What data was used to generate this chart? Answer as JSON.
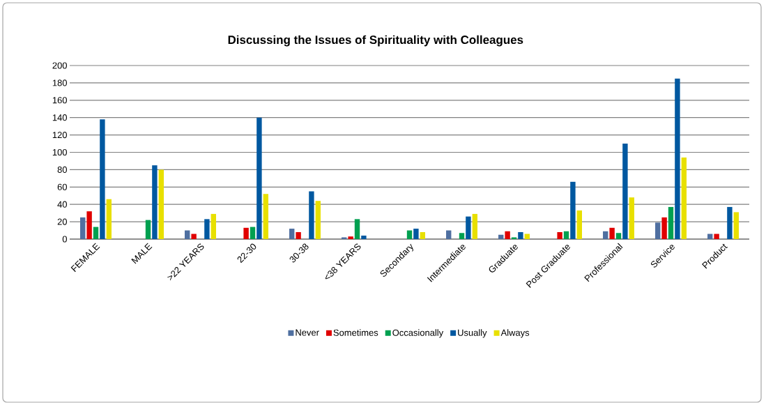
{
  "chart_data": {
    "type": "bar",
    "title": "Discussing the Issues of Spirituality with Colleagues",
    "categories": [
      "FEMALE",
      "MALE",
      ">22 YEARS",
      "22-30",
      "30-38",
      "<38 YEARS",
      "Secondary",
      "Intermediate",
      "Graduate",
      "Post Graduate",
      "Professional",
      "Service",
      "Product"
    ],
    "series": [
      {
        "name": "Never",
        "color": "#4f6fa0",
        "values": [
          25,
          0,
          10,
          0,
          12,
          2,
          0,
          10,
          5,
          0,
          9,
          19,
          6
        ]
      },
      {
        "name": "Sometimes",
        "color": "#e00000",
        "values": [
          32,
          0,
          6,
          13,
          8,
          3,
          0,
          0,
          9,
          8,
          13,
          25,
          6
        ]
      },
      {
        "name": "Occasionally",
        "color": "#00a050",
        "values": [
          14,
          22,
          0,
          14,
          0,
          23,
          10,
          7,
          2,
          9,
          7,
          37,
          0
        ]
      },
      {
        "name": "Usually",
        "color": "#0058a0",
        "values": [
          138,
          85,
          23,
          140,
          55,
          4,
          12,
          26,
          8,
          66,
          110,
          185,
          37
        ]
      },
      {
        "name": "Always",
        "color": "#e8e000",
        "values": [
          46,
          80,
          29,
          52,
          44,
          0,
          8,
          29,
          6,
          33,
          48,
          94,
          31
        ]
      }
    ],
    "ylim": [
      0,
      200
    ],
    "yticks": [
      0,
      20,
      40,
      60,
      80,
      100,
      120,
      140,
      160,
      180,
      200
    ],
    "grid": "y",
    "legend": "bottom"
  }
}
